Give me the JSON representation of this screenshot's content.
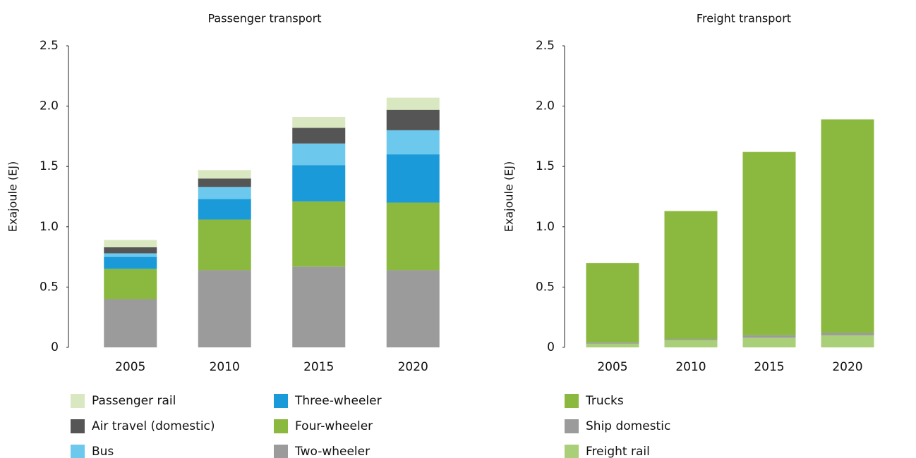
{
  "chart_data": [
    {
      "type": "bar",
      "stacked": true,
      "title": "Passenger transport",
      "y_label": "Exajoule (EJ)",
      "categories": [
        "2005",
        "2010",
        "2015",
        "2020"
      ],
      "series": [
        {
          "name": "Two-wheeler",
          "color": "#9b9b9b",
          "values": [
            0.4,
            0.64,
            0.67,
            0.64
          ]
        },
        {
          "name": "Four-wheeler",
          "color": "#8bb93f",
          "values": [
            0.25,
            0.42,
            0.54,
            0.56
          ]
        },
        {
          "name": "Three-wheeler",
          "color": "#1a9ad8",
          "values": [
            0.1,
            0.17,
            0.3,
            0.4
          ]
        },
        {
          "name": "Bus",
          "color": "#6cc8ec",
          "values": [
            0.03,
            0.1,
            0.18,
            0.2
          ]
        },
        {
          "name": "Air travel (domestic)",
          "color": "#555555",
          "values": [
            0.05,
            0.07,
            0.13,
            0.17
          ]
        },
        {
          "name": "Passenger rail",
          "color": "#d9e8c0",
          "values": [
            0.06,
            0.07,
            0.09,
            0.1
          ]
        }
      ],
      "ylim": [
        0,
        2.5
      ],
      "yticks": [
        0,
        0.5,
        {
          "value": 1,
          "label": "1.0"
        },
        1.5,
        {
          "value": 2,
          "label": "2.0"
        },
        2.5
      ]
    },
    {
      "type": "bar",
      "stacked": true,
      "title": "Freight transport",
      "y_label": "Exajoule (EJ)",
      "categories": [
        "2005",
        "2010",
        "2015",
        "2020"
      ],
      "series": [
        {
          "name": "Freight rail",
          "color": "#a9cf78",
          "values": [
            0.03,
            0.06,
            0.08,
            0.1
          ]
        },
        {
          "name": "Ship domestic",
          "color": "#9b9b9b",
          "values": [
            0.01,
            0.01,
            0.02,
            0.02
          ]
        },
        {
          "name": "Trucks",
          "color": "#8bb93f",
          "values": [
            0.66,
            1.06,
            1.52,
            1.77
          ]
        }
      ],
      "ylim": [
        0,
        2.5
      ],
      "yticks": [
        0,
        0.5,
        {
          "value": 1,
          "label": "1.0"
        },
        1.5,
        {
          "value": 2,
          "label": "2.0"
        },
        2.5
      ]
    }
  ]
}
